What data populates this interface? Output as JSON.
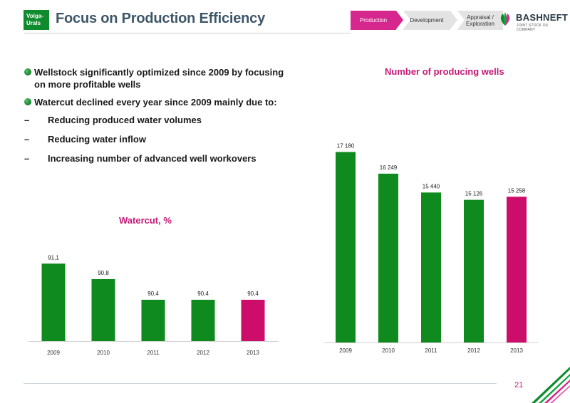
{
  "header": {
    "region_line1": "Volga-",
    "region_line2": "Urals",
    "title": "Focus on Production Efficiency",
    "stages": [
      "Production",
      "Development",
      "Appraisal /",
      "Exploration"
    ],
    "active_stage": "Production"
  },
  "logo": {
    "name": "BASHNEFT",
    "tagline": "JOINT STOCK OIL COMPANY"
  },
  "bullets": [
    "Wellstock significantly optimized since 2009 by focusing on more profitable wells",
    "Watercut declined every year since 2009 mainly due to:"
  ],
  "sub_bullets": [
    "Reducing produced water volumes",
    "Reducing water inflow",
    "Increasing number of advanced well workovers"
  ],
  "dash": "–",
  "chart_data": [
    {
      "type": "bar",
      "title": "Watercut, %",
      "categories": [
        "2009",
        "2010",
        "2011",
        "2012",
        "2013"
      ],
      "values": [
        91.1,
        90.8,
        90.4,
        90.4,
        90.4
      ],
      "labels": [
        "91,1",
        "90,8",
        "90,4",
        "90,4",
        "90,4"
      ],
      "colors": [
        "#0e8a1e",
        "#0e8a1e",
        "#0e8a1e",
        "#0e8a1e",
        "#cc0e6a"
      ],
      "ylim": [
        89.6,
        91.2
      ],
      "grid": false,
      "legend": "none"
    },
    {
      "type": "bar",
      "title": "Number of producing wells",
      "categories": [
        "2009",
        "2010",
        "2011",
        "2012",
        "2013"
      ],
      "values": [
        17180,
        16249,
        15440,
        15126,
        15258
      ],
      "labels": [
        "17 180",
        "16 249",
        "15 440",
        "15 126",
        "15 258"
      ],
      "colors": [
        "#0e8a1e",
        "#0e8a1e",
        "#0e8a1e",
        "#0e8a1e",
        "#cc0e6a"
      ],
      "ylim": [
        9000,
        17500
      ],
      "grid": false,
      "legend": "none"
    }
  ],
  "footer": {
    "page_number": "21"
  },
  "colors": {
    "green": "#0e8a1e",
    "magenta": "#cc0e6a",
    "title_slate": "#3d5668"
  }
}
